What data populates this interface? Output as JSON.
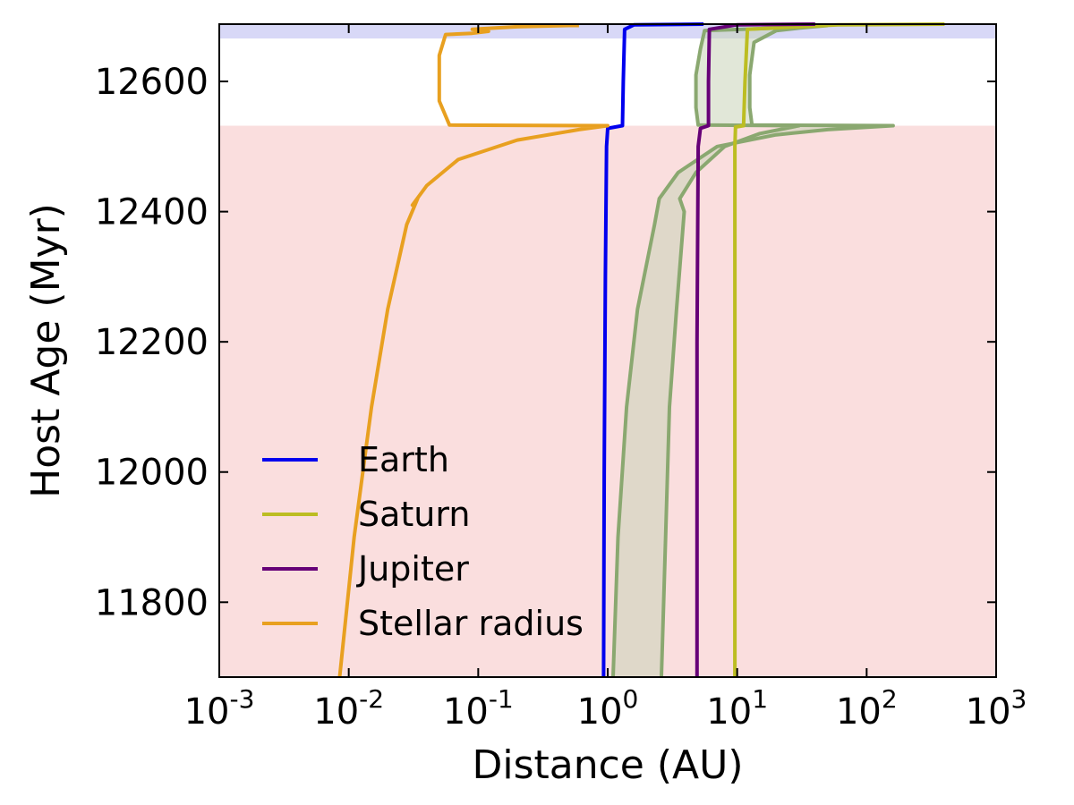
{
  "chart_data": {
    "type": "line",
    "xlabel": "Distance (AU)",
    "ylabel": "Host Age (Myr)",
    "xscale": "log",
    "xlim": [
      0.001,
      1000
    ],
    "ylim": [
      11685,
      12688
    ],
    "grid": false,
    "legend_placement": "lower-left",
    "x_ticks": [
      {
        "base": "10",
        "exp": "-3"
      },
      {
        "base": "10",
        "exp": "-2"
      },
      {
        "base": "10",
        "exp": "-1"
      },
      {
        "base": "10",
        "exp": "0"
      },
      {
        "base": "10",
        "exp": "1"
      },
      {
        "base": "10",
        "exp": "2"
      },
      {
        "base": "10",
        "exp": "3"
      }
    ],
    "y_ticks": [
      "11800",
      "12000",
      "12200",
      "12400",
      "12600"
    ],
    "shaded_regions": [
      {
        "y0": 11685,
        "y1": 12532,
        "color": "#f8d0d0"
      },
      {
        "y0": 12666,
        "y1": 12688,
        "color": "#c8c8f4"
      }
    ],
    "series": [
      {
        "name": "Earth",
        "color": "#0000ee",
        "points": [
          [
            0.93,
            11685
          ],
          [
            0.94,
            12000
          ],
          [
            0.96,
            12300
          ],
          [
            0.98,
            12500
          ],
          [
            1.0,
            12528
          ],
          [
            1.3,
            12532
          ],
          [
            1.32,
            12600
          ],
          [
            1.35,
            12680
          ],
          [
            1.6,
            12687
          ],
          [
            5.5,
            12688
          ]
        ]
      },
      {
        "name": "Saturn",
        "color": "#bcbd22",
        "points": [
          [
            9.6,
            11685
          ],
          [
            9.6,
            12200
          ],
          [
            9.6,
            12500
          ],
          [
            9.7,
            12530
          ],
          [
            11.2,
            12532
          ],
          [
            11.5,
            12600
          ],
          [
            12,
            12680
          ],
          [
            60,
            12687
          ],
          [
            400,
            12688
          ]
        ]
      },
      {
        "name": "Jupiter",
        "color": "#660077",
        "points": [
          [
            4.9,
            11685
          ],
          [
            4.9,
            12200
          ],
          [
            5.0,
            12500
          ],
          [
            5.2,
            12528
          ],
          [
            6.0,
            12532
          ],
          [
            6.0,
            12600
          ],
          [
            6.1,
            12680
          ],
          [
            10,
            12687
          ],
          [
            40,
            12688
          ]
        ]
      },
      {
        "name": "Stellar radius",
        "color": "#e8a020",
        "points": [
          [
            0.0085,
            11685
          ],
          [
            0.011,
            11900
          ],
          [
            0.015,
            12100
          ],
          [
            0.02,
            12250
          ],
          [
            0.028,
            12380
          ],
          [
            0.034,
            12420
          ],
          [
            0.031,
            12410
          ],
          [
            0.04,
            12440
          ],
          [
            0.07,
            12480
          ],
          [
            0.2,
            12510
          ],
          [
            0.6,
            12526
          ],
          [
            1.0,
            12532
          ],
          [
            0.06,
            12533
          ],
          [
            0.05,
            12570
          ],
          [
            0.05,
            12640
          ],
          [
            0.056,
            12672
          ],
          [
            0.09,
            12674
          ],
          [
            0.12,
            12677
          ],
          [
            0.09,
            12680
          ],
          [
            0.2,
            12684
          ],
          [
            0.5,
            12686
          ],
          [
            0.6,
            12686
          ]
        ]
      }
    ],
    "band": {
      "color": "#8aa870",
      "fill": "#c8d4b8",
      "inner": [
        [
          2.6,
          11685
        ],
        [
          2.8,
          11900
        ],
        [
          3.0,
          12100
        ],
        [
          3.4,
          12250
        ],
        [
          3.9,
          12400
        ],
        [
          3.6,
          12420
        ],
        [
          4.8,
          12460
        ],
        [
          8,
          12500
        ],
        [
          15,
          12520
        ],
        [
          30,
          12532
        ],
        [
          5.0,
          12533
        ],
        [
          4.8,
          12560
        ],
        [
          4.8,
          12610
        ],
        [
          5.2,
          12650
        ],
        [
          5.6,
          12678
        ],
        [
          20,
          12682
        ],
        [
          40,
          12685
        ]
      ],
      "outer": [
        [
          1.1,
          11685
        ],
        [
          1.2,
          11900
        ],
        [
          1.4,
          12100
        ],
        [
          1.7,
          12250
        ],
        [
          2.3,
          12380
        ],
        [
          2.5,
          12420
        ],
        [
          3.5,
          12460
        ],
        [
          7,
          12500
        ],
        [
          20,
          12518
        ],
        [
          50,
          12526
        ],
        [
          160,
          12532
        ],
        [
          13,
          12533
        ],
        [
          12.5,
          12560
        ],
        [
          12.5,
          12610
        ],
        [
          13.5,
          12660
        ],
        [
          20,
          12678
        ],
        [
          30,
          12682
        ],
        [
          50,
          12686
        ]
      ]
    }
  }
}
